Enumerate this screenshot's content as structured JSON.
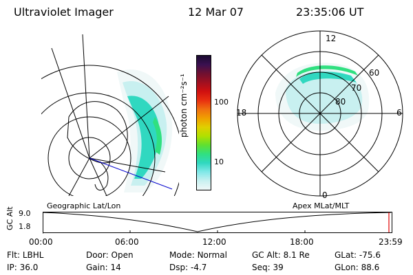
{
  "header": {
    "instrument": "Ultraviolet Imager",
    "date": "12 Mar 07",
    "time": "23:35:06 UT"
  },
  "colorbar": {
    "unit_label": "photon cm⁻²s⁻¹",
    "ticks": [
      "100",
      "10"
    ],
    "colors": [
      "#1a0a30",
      "#3a1050",
      "#701030",
      "#a01020",
      "#d01010",
      "#e83010",
      "#f07010",
      "#f0a000",
      "#e0d000",
      "#b0e000",
      "#60e030",
      "#30e080",
      "#30d8c0",
      "#80e8e8",
      "#c8f0f0",
      "#f0f8f8"
    ]
  },
  "geo_map": {
    "label": "Geographic Lat/Lon"
  },
  "polar_map": {
    "label": "Apex MLat/MLT",
    "mlt_labels": {
      "top": "12",
      "left": "18",
      "right": "6",
      "bottom": "0"
    },
    "lat_labels": [
      "60",
      "70",
      "80"
    ]
  },
  "timeline": {
    "axis_label": "GC Alt",
    "ymax": "9.0",
    "ymin": "1.8",
    "ticks": [
      "00:00",
      "06:00",
      "12:00",
      "18:00",
      "23:59"
    ]
  },
  "status": {
    "row1": [
      {
        "key": "Flt:",
        "value": "LBHL"
      },
      {
        "key": "Door:",
        "value": "Open"
      },
      {
        "key": "Mode:",
        "value": "Normal"
      },
      {
        "key": "GC Alt:",
        "value": "8.1 Re"
      },
      {
        "key": "GLat:",
        "value": "-75.6"
      }
    ],
    "row2": [
      {
        "key": "IP:",
        "value": "36.0"
      },
      {
        "key": "Gain:",
        "value": "14"
      },
      {
        "key": "Dsp:",
        "value": "-4.7"
      },
      {
        "key": "Seq:",
        "value": "39"
      },
      {
        "key": "GLon:",
        "value": "88.6"
      }
    ]
  }
}
